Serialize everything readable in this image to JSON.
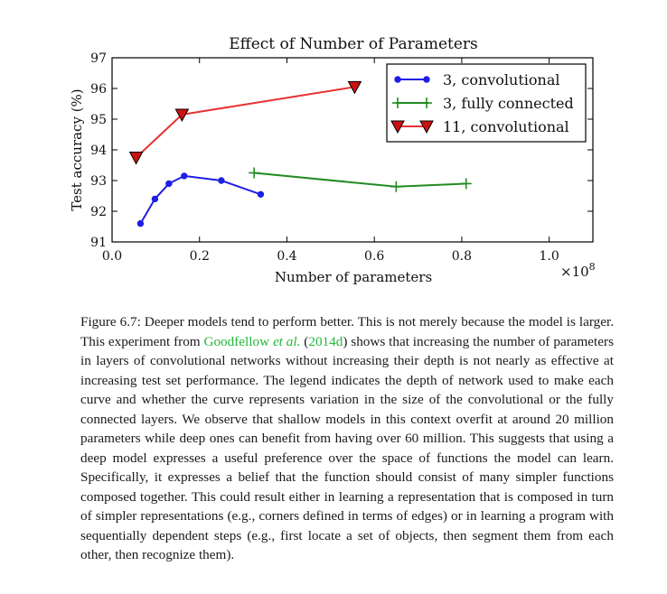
{
  "chart_data": {
    "type": "line",
    "title": "Effect of Number of Parameters",
    "xlabel": "Number of parameters",
    "ylabel": "Test accuracy (%)",
    "x_multiplier_label": "×10",
    "x_multiplier_exp": "8",
    "xlim": [
      0.0,
      1.1
    ],
    "ylim": [
      91,
      97
    ],
    "xticks": [
      0.0,
      0.2,
      0.4,
      0.6,
      0.8,
      1.0
    ],
    "xtick_labels": [
      "0.0",
      "0.2",
      "0.4",
      "0.6",
      "0.8",
      "1.0"
    ],
    "yticks": [
      91,
      92,
      93,
      94,
      95,
      96,
      97
    ],
    "ytick_labels": [
      "91",
      "92",
      "93",
      "94",
      "95",
      "96",
      "97"
    ],
    "grid": false,
    "legend_position": "top-right",
    "series": [
      {
        "name": "3, convolutional",
        "color": "#1f1fe6",
        "marker": "circle",
        "x": [
          0.065,
          0.098,
          0.13,
          0.165,
          0.25,
          0.34
        ],
        "y": [
          91.6,
          92.4,
          92.9,
          93.15,
          93.0,
          92.55
        ]
      },
      {
        "name": "3, fully connected",
        "color": "#228b22",
        "marker": "plus",
        "x": [
          0.325,
          0.65,
          0.81
        ],
        "y": [
          93.25,
          92.8,
          92.9
        ]
      },
      {
        "name": "11, convolutional",
        "color": "#e83030",
        "marker": "triangle-down",
        "x": [
          0.055,
          0.16,
          0.555
        ],
        "y": [
          93.75,
          95.15,
          96.05
        ]
      }
    ]
  },
  "caption": {
    "part1": "Figure 6.7: Deeper models tend to perform better. This is not merely because the model is larger. This experiment from ",
    "cite_author": "Goodfellow ",
    "cite_etal": "et al.",
    "cite_open": " (",
    "cite_year": "2014d",
    "cite_close": ")",
    "part2": " shows that increasing the number of parameters in layers of convolutional networks without increasing their depth is not nearly as effective at increasing test set performance. The legend indicates the depth of network used to make each curve and whether the curve represents variation in the size of the convolutional or the fully connected layers. We observe that shallow models in this context overfit at around 20 million parameters while deep ones can benefit from having over 60 million. This suggests that using a deep model expresses a useful preference over the space of functions the model can learn. Specifically, it expresses a belief that the function should consist of many simpler functions composed together. This could result either in learning a representation that is composed in turn of simpler representations (e.g., corners defined in terms of edges) or in learning a program with sequentially dependent steps (e.g., first locate a set of objects, then segment them from each other, then recognize them)."
  }
}
